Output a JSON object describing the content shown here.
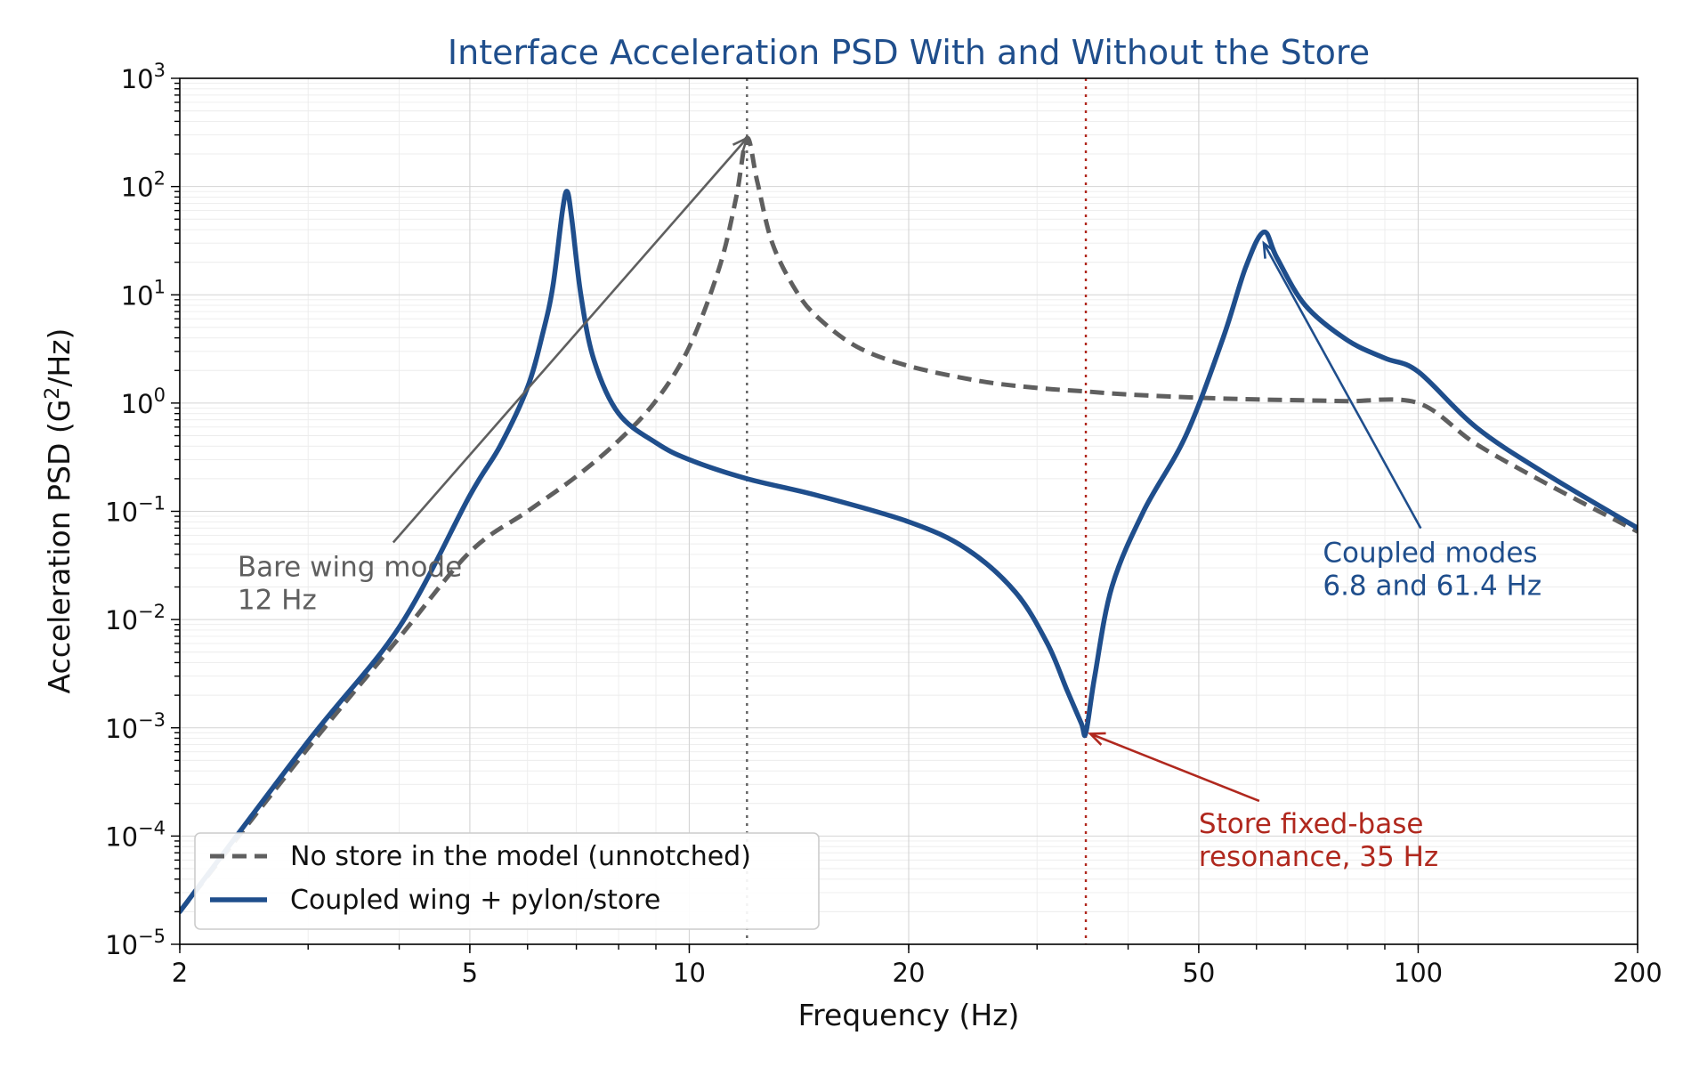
{
  "chart_data": {
    "type": "line",
    "title": "Interface Acceleration PSD With and Without the Store",
    "xlabel": "Frequency (Hz)",
    "ylabel_main": "Acceleration PSD (G",
    "ylabel_sup": "2",
    "ylabel_tail": "/Hz)",
    "x_scale": "log",
    "y_scale": "log",
    "xlim": [
      2,
      200
    ],
    "ylim": [
      1e-05,
      1000
    ],
    "x_ticks": [
      2,
      5,
      10,
      20,
      50,
      100,
      200
    ],
    "x_tick_labels": [
      "2",
      "5",
      "10",
      "20",
      "50",
      "100",
      "200"
    ],
    "y_ticks": [
      1e-05,
      0.0001,
      0.001,
      0.01,
      0.1,
      1,
      10,
      100,
      1000
    ],
    "y_tick_base": "10",
    "y_tick_exponents": [
      "−5",
      "−4",
      "−3",
      "−2",
      "−1",
      "0",
      "1",
      "2",
      "3"
    ],
    "grid": true,
    "legend_placement": "lower-left",
    "colors": {
      "coupled": "#1f4e8c",
      "bare": "#5f5f5f",
      "store": "#b0281e"
    },
    "series": [
      {
        "name": "No store in the model (unnotched)",
        "style": "dashed",
        "color": "#5f5f5f",
        "x": [
          2,
          3,
          4,
          5,
          6,
          7,
          8,
          9,
          10,
          11,
          11.6,
          12,
          12.4,
          13,
          14,
          15,
          17,
          20,
          25,
          30,
          35,
          40,
          50,
          60,
          70,
          80,
          100,
          120,
          150,
          200
        ],
        "y": [
          2e-05,
          0.00065,
          0.0068,
          0.042,
          0.1,
          0.21,
          0.45,
          1.05,
          3.3,
          18,
          80,
          280,
          110,
          30,
          11,
          6.2,
          3.3,
          2.2,
          1.6,
          1.38,
          1.28,
          1.2,
          1.12,
          1.08,
          1.06,
          1.04,
          1.0,
          0.42,
          0.18,
          0.065
        ]
      },
      {
        "name": "Coupled wing + pylon/store",
        "style": "solid",
        "color": "#1f4e8c",
        "x": [
          2,
          3,
          4,
          5,
          5.5,
          6,
          6.3,
          6.5,
          6.7,
          6.8,
          6.9,
          7.1,
          7.4,
          8,
          9,
          10,
          12,
          15,
          20,
          24,
          28,
          31,
          33,
          34.5,
          35,
          36,
          38,
          42,
          48,
          54,
          58,
          61.4,
          64,
          70,
          80,
          90,
          100,
          120,
          150,
          200
        ],
        "y": [
          2e-05,
          0.00075,
          0.0085,
          0.14,
          0.4,
          1.4,
          4.5,
          12,
          60,
          90,
          50,
          10,
          2.5,
          0.8,
          0.43,
          0.3,
          0.2,
          0.14,
          0.08,
          0.045,
          0.018,
          0.006,
          0.0022,
          0.0011,
          0.0009,
          0.003,
          0.02,
          0.1,
          0.5,
          4,
          18,
          38,
          22,
          8,
          3.8,
          2.6,
          1.95,
          0.6,
          0.22,
          0.07
        ]
      }
    ],
    "vertical_lines": [
      {
        "x": 12,
        "color": "#5f5f5f",
        "style": "dotted"
      },
      {
        "x": 35,
        "color": "#b0281e",
        "style": "dotted"
      }
    ],
    "annotations": [
      {
        "lines": [
          "Bare wing mode",
          "12 Hz"
        ],
        "text_x": 2.4,
        "text_y": 0.02,
        "target_x": 12,
        "target_y": 280,
        "color": "#5f5f5f"
      },
      {
        "lines": [
          "Coupled modes",
          "6.8 and 61.4 Hz"
        ],
        "text_x": 74,
        "text_y": 0.027,
        "target_x": 61.4,
        "target_y": 30,
        "color": "#1f4e8c"
      },
      {
        "lines": [
          "Store fixed-base",
          "resonance, 35 Hz"
        ],
        "text_x": 50,
        "text_y": 8.5e-05,
        "target_x": 35.5,
        "target_y": 0.00088,
        "color": "#b0281e"
      }
    ]
  }
}
